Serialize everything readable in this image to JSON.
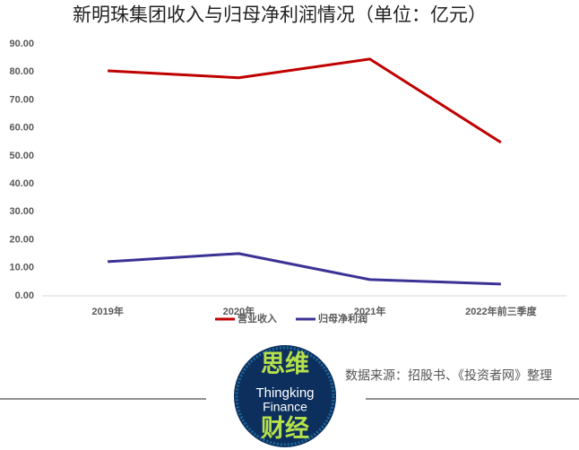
{
  "chart_data": {
    "type": "line",
    "title": "新明珠集团收入与归母净利润情况（单位：亿元）",
    "categories": [
      "2019年",
      "2020年",
      "2021年",
      "2022年前三季度"
    ],
    "series": [
      {
        "name": "营业收入",
        "color": "#c00000",
        "values": [
          80.4,
          77.9,
          84.6,
          54.8
        ]
      },
      {
        "name": "归母净利润",
        "color": "#3b3295",
        "values": [
          12.2,
          15.1,
          5.8,
          4.2
        ]
      }
    ],
    "ylim": [
      0,
      90
    ],
    "yticks": [
      {
        "value": 0,
        "label": "0.00"
      },
      {
        "value": 10,
        "label": "10.00"
      },
      {
        "value": 20,
        "label": "20.00"
      },
      {
        "value": 30,
        "label": "30.00"
      },
      {
        "value": 40,
        "label": "40.00"
      },
      {
        "value": 50,
        "label": "50.00"
      },
      {
        "value": 60,
        "label": "60.00"
      },
      {
        "value": 70,
        "label": "70.00"
      },
      {
        "value": 80,
        "label": "80.00"
      },
      {
        "value": 90,
        "label": "90.00"
      }
    ],
    "grid": false,
    "legend": "bottom",
    "source": "数据来源：招股书、《投资者网》整理"
  },
  "logo": {
    "top": "思维",
    "middle1": "Thingking",
    "middle2": "Finance",
    "bottom": "财经"
  }
}
